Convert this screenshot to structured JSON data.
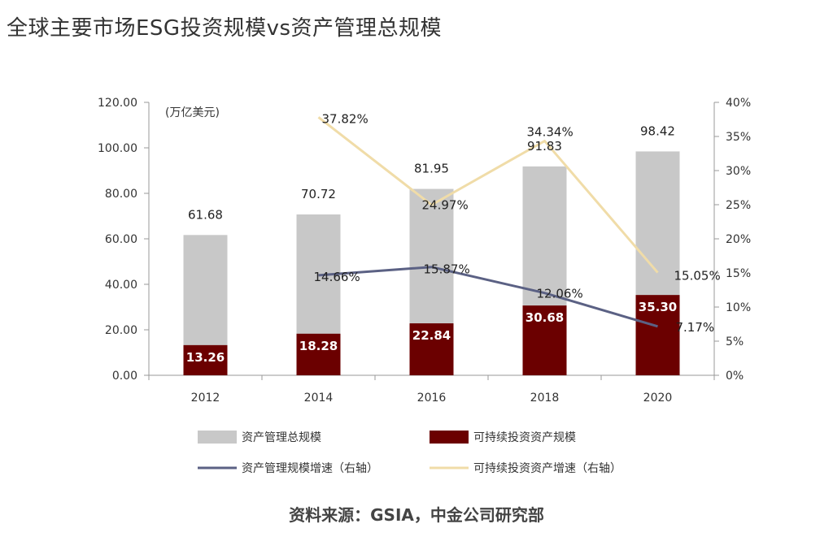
{
  "title": "全球主要市场ESG投资规模vs资产管理总规模",
  "source": "资料来源：GSIA，中金公司研究部",
  "colors": {
    "total_bar": "#c8c8c8",
    "esg_bar": "#6b0000",
    "aum_growth_line": "#5b6184",
    "esg_growth_line": "#f0dca8",
    "axis": "#999999"
  },
  "chart_data": {
    "type": "bar",
    "categories": [
      "2012",
      "2014",
      "2016",
      "2018",
      "2020"
    ],
    "y_unit_label": "(万亿美元)",
    "ylim": [
      0,
      120
    ],
    "y_ticks": [
      "0.00",
      "20.00",
      "40.00",
      "60.00",
      "80.00",
      "100.00",
      "120.00"
    ],
    "y2lim": [
      0,
      40
    ],
    "y2_ticks": [
      "0%",
      "5%",
      "10%",
      "15%",
      "20%",
      "25%",
      "30%",
      "35%",
      "40%"
    ],
    "series": [
      {
        "name": "资产管理总规模",
        "type": "bar",
        "axis": "left",
        "values": [
          61.68,
          70.72,
          81.95,
          91.83,
          98.42
        ],
        "labels": [
          "61.68",
          "70.72",
          "81.95",
          "91.83",
          "98.42"
        ]
      },
      {
        "name": "可持续投资资产规模",
        "type": "bar",
        "axis": "left",
        "values": [
          13.26,
          18.28,
          22.84,
          30.68,
          35.3
        ],
        "labels": [
          "13.26",
          "18.28",
          "22.84",
          "30.68",
          "35.30"
        ]
      },
      {
        "name": "资产管理规模增速（右轴）",
        "type": "line",
        "axis": "right",
        "values": [
          null,
          14.66,
          15.87,
          12.06,
          7.17
        ],
        "labels": [
          "",
          "14.66%",
          "15.87%",
          "12.06%",
          "7.17%"
        ]
      },
      {
        "name": "可持续投资资产增速（右轴）",
        "type": "line",
        "axis": "right",
        "values": [
          null,
          37.82,
          24.97,
          34.34,
          15.05
        ],
        "labels": [
          "",
          "37.82%",
          "24.97%",
          "34.34%",
          "15.05%"
        ]
      }
    ],
    "legend_position": "bottom"
  }
}
